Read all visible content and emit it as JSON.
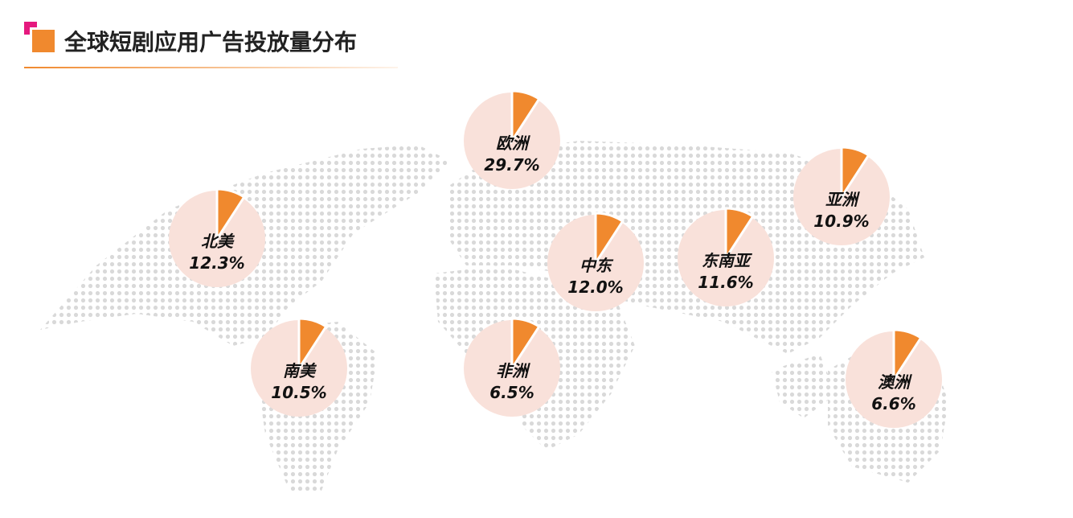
{
  "header": {
    "title": "全球短剧应用广告投放量分布"
  },
  "regions": [
    {
      "name": "欧洲",
      "share": "29.7%"
    },
    {
      "name": "北美",
      "share": "12.3%"
    },
    {
      "name": "亚洲",
      "share": "10.9%"
    },
    {
      "name": "中东",
      "share": "12.0%"
    },
    {
      "name": "东南亚",
      "share": "11.6%"
    },
    {
      "name": "南美",
      "share": "10.5%"
    },
    {
      "name": "非洲",
      "share": "6.5%"
    },
    {
      "name": "澳洲",
      "share": "6.6%"
    }
  ]
}
